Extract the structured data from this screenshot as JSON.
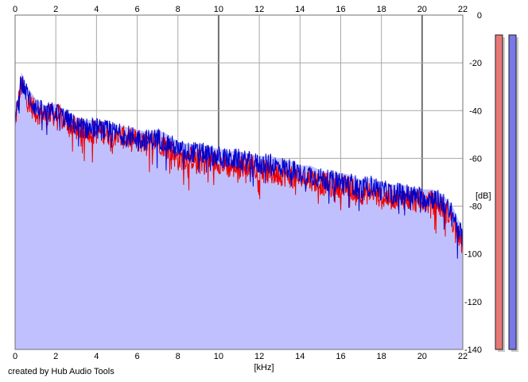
{
  "chart_data": {
    "type": "area",
    "title": "",
    "xlabel": "[kHz]",
    "ylabel": "[dB]",
    "xlim": [
      0,
      22
    ],
    "ylim": [
      -140,
      0
    ],
    "x_ticks": [
      "0",
      "2",
      "4",
      "6",
      "8",
      "10",
      "12",
      "14",
      "16",
      "18",
      "20",
      "22"
    ],
    "y_ticks": [
      "0",
      "-20",
      "-40",
      "-60",
      "-80",
      "-100",
      "-120",
      "-140"
    ],
    "grid": true,
    "legend": "none",
    "series": [
      {
        "color": "#0000cc",
        "fill": "#c0c0ff",
        "x": [
          0,
          0.3,
          0.6,
          1,
          1.5,
          2,
          2.5,
          3,
          3.5,
          4,
          4.5,
          5,
          5.5,
          6,
          6.5,
          7,
          7.5,
          8,
          8.5,
          9,
          9.5,
          10,
          10.5,
          11,
          11.5,
          12,
          12.5,
          13,
          13.5,
          14,
          14.5,
          15,
          15.5,
          16,
          16.5,
          17,
          17.5,
          18,
          18.5,
          19,
          19.5,
          20,
          20.5,
          21,
          21.5,
          22
        ],
        "values": [
          -45,
          -27,
          -33,
          -38,
          -41,
          -40,
          -43,
          -46,
          -47,
          -47,
          -48,
          -49,
          -50,
          -51,
          -52,
          -51,
          -53,
          -56,
          -57,
          -57,
          -58,
          -59,
          -60,
          -60,
          -61,
          -62,
          -62,
          -63,
          -64,
          -66,
          -66,
          -68,
          -69,
          -69,
          -70,
          -72,
          -71,
          -73,
          -74,
          -74,
          -75,
          -76,
          -76,
          -78,
          -83,
          -93
        ]
      },
      {
        "color": "#ee0000",
        "x": [
          0,
          0.3,
          0.6,
          1,
          1.5,
          2,
          2.5,
          3,
          3.5,
          4,
          4.5,
          5,
          5.5,
          6,
          6.5,
          7,
          7.5,
          8,
          8.5,
          9,
          9.5,
          10,
          10.5,
          11,
          11.5,
          12,
          12.5,
          13,
          13.5,
          14,
          14.5,
          15,
          15.5,
          16,
          16.5,
          17,
          17.5,
          18,
          18.5,
          19,
          19.5,
          20,
          20.5,
          21,
          21.5,
          22
        ],
        "values": [
          -44,
          -29,
          -35,
          -40,
          -42,
          -41,
          -44,
          -47,
          -48,
          -48,
          -49,
          -50,
          -51,
          -52,
          -53,
          -52,
          -55,
          -60,
          -59,
          -60,
          -60,
          -61,
          -63,
          -63,
          -62,
          -64,
          -66,
          -66,
          -67,
          -68,
          -68,
          -70,
          -71,
          -71,
          -72,
          -74,
          -74,
          -76,
          -76,
          -76,
          -77,
          -78,
          -78,
          -80,
          -85,
          -96
        ]
      }
    ]
  },
  "meters": {
    "left_color": "#e87878",
    "right_color": "#7878e8"
  },
  "credit": "created by Hub Audio Tools"
}
